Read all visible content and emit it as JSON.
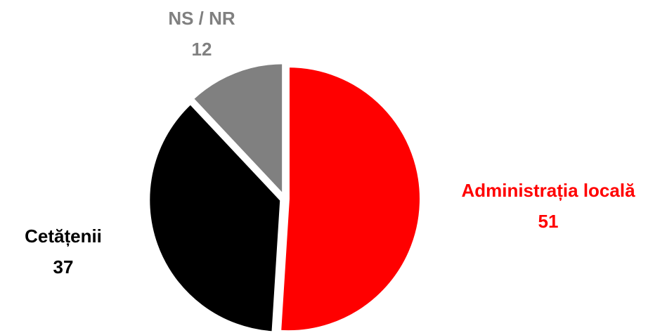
{
  "chart_data": {
    "type": "pie",
    "categories": [
      "Administrația locală",
      "Cetățenii",
      "NS / NR"
    ],
    "values": [
      51,
      37,
      12
    ],
    "colors": [
      "#ff0000",
      "#000000",
      "#808080"
    ]
  }
}
